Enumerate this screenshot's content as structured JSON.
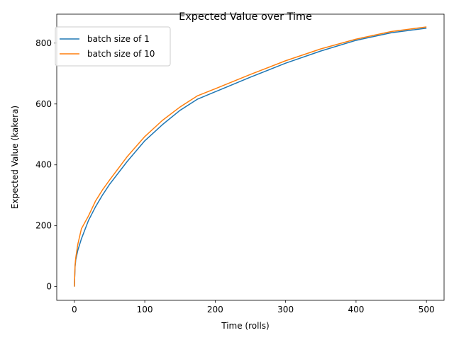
{
  "chart_data": {
    "type": "line",
    "title": "Expected Value over Time",
    "xlabel": "Time (rolls)",
    "ylabel": "Expected Value (kakera)",
    "xlim": [
      -25,
      525
    ],
    "ylim": [
      -45,
      895
    ],
    "xticks": [
      0,
      100,
      200,
      300,
      400,
      500
    ],
    "yticks": [
      0,
      200,
      400,
      600,
      800
    ],
    "grid": false,
    "legend_position": "upper-left",
    "x": [
      0,
      1,
      2,
      5,
      10,
      20,
      30,
      40,
      50,
      75,
      100,
      125,
      150,
      175,
      200,
      250,
      300,
      350,
      400,
      450,
      500
    ],
    "series": [
      {
        "name": "batch size of 1",
        "color": "#1f77b4",
        "values": [
          0,
          65,
          88,
          120,
          157,
          217,
          262,
          301,
          336,
          411,
          479,
          532,
          579,
          616,
          640,
          688,
          734,
          774,
          809,
          834,
          849
        ]
      },
      {
        "name": "batch size of 10",
        "color": "#ff7f0e",
        "values": [
          0,
          70,
          95,
          140,
          190,
          232,
          281,
          318,
          350,
          427,
          493,
          546,
          590,
          627,
          650,
          697,
          742,
          781,
          813,
          838,
          853
        ]
      }
    ]
  }
}
